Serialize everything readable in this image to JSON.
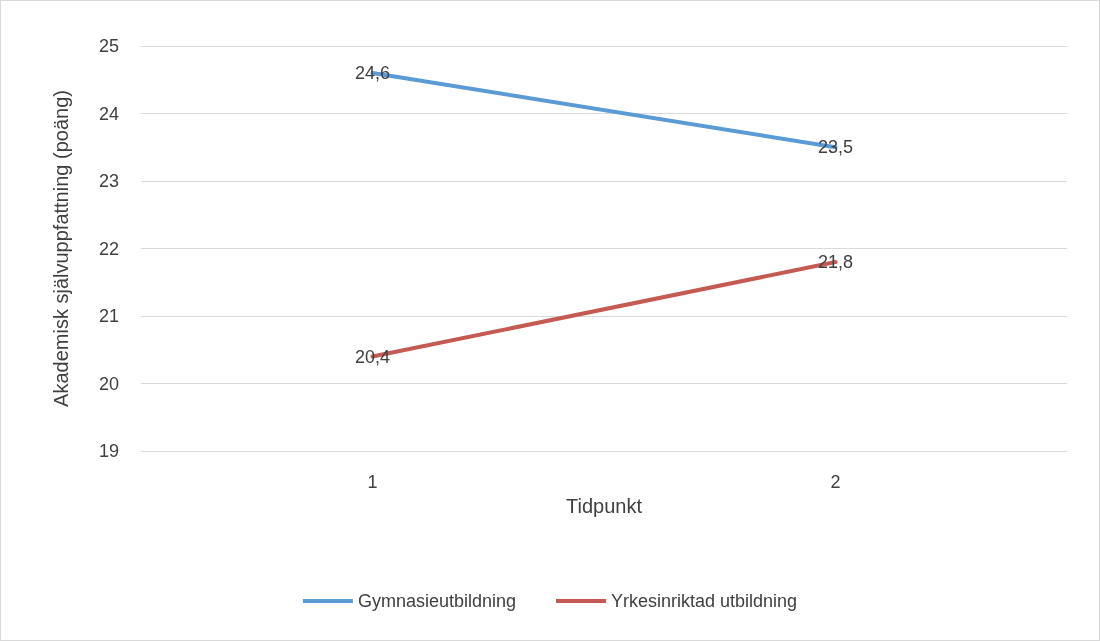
{
  "chart_data": {
    "type": "line",
    "xlabel": "Tidpunkt",
    "ylabel": "Akademisk självuppfattning (poäng)",
    "categories": [
      "1",
      "2"
    ],
    "series": [
      {
        "name": "Gymnasieutbildning",
        "color": "#5b9bd5",
        "values": [
          24.6,
          23.5
        ],
        "value_labels": [
          "24,6",
          "23,5"
        ]
      },
      {
        "name": "Yrkesinriktad utbildning",
        "color": "#c55a52",
        "values": [
          20.4,
          21.8
        ],
        "value_labels": [
          "20,4",
          "21,8"
        ]
      }
    ],
    "ylim": [
      19,
      25
    ],
    "yticks": [
      19,
      20,
      21,
      22,
      23,
      24,
      25
    ],
    "grid": "y",
    "legend": "bottom",
    "marker": "none",
    "line_style": "solid"
  }
}
